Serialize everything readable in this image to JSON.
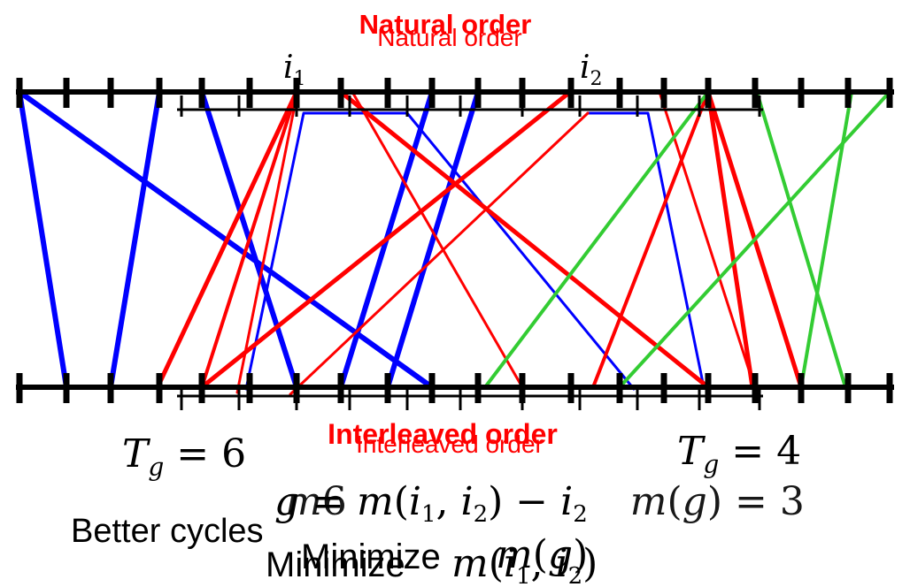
{
  "colors": {
    "blue": "#0000ff",
    "red": "#ff0000",
    "green": "#33cc33",
    "black": "#000000"
  },
  "labels": {
    "natural_order": "Natural order",
    "interleaved_order": "Interleaved order",
    "i1": "i1",
    "i2": "i2",
    "tg_left": "T_g = 6",
    "tg_right": "T_g = 4",
    "g_formula": "g = m(i1, i2) − i2",
    "m_g": "m(g) = 3",
    "better_cycles": "Better cycles",
    "minimize": "Minimize",
    "minimize_expr": "m(i1, i2)"
  }
}
